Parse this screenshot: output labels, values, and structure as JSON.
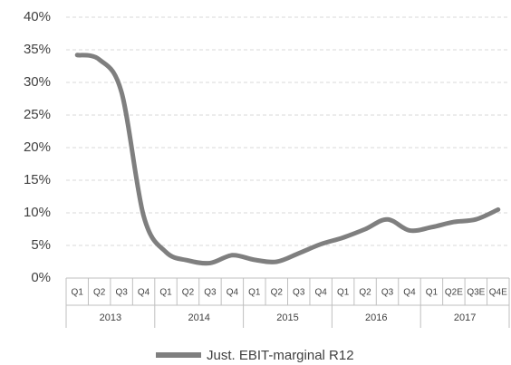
{
  "chart_data": {
    "type": "line",
    "categories": [
      "Q1",
      "Q2",
      "Q3",
      "Q4",
      "Q1",
      "Q2",
      "Q3",
      "Q4",
      "Q1",
      "Q2",
      "Q3",
      "Q4",
      "Q1",
      "Q2",
      "Q3",
      "Q4",
      "Q1",
      "Q2E",
      "Q3E",
      "Q4E"
    ],
    "groups": [
      "2013",
      "2014",
      "2015",
      "2016",
      "2017"
    ],
    "series": [
      {
        "name": "Just. EBIT-marginal R12",
        "color": "#7f7f7f",
        "values": [
          34.2,
          33.5,
          28.5,
          9.5,
          4.0,
          2.7,
          2.3,
          3.5,
          2.8,
          2.5,
          3.8,
          5.2,
          6.2,
          7.5,
          9.0,
          7.3,
          7.8,
          8.6,
          9.0,
          10.5
        ]
      }
    ],
    "ylim": [
      0,
      40
    ],
    "yticks": [
      {
        "value": 0,
        "label": "0%"
      },
      {
        "value": 5,
        "label": "5%"
      },
      {
        "value": 10,
        "label": "10%"
      },
      {
        "value": 15,
        "label": "15%"
      },
      {
        "value": 20,
        "label": "20%"
      },
      {
        "value": 25,
        "label": "25%"
      },
      {
        "value": 30,
        "label": "30%"
      },
      {
        "value": 35,
        "label": "35%"
      },
      {
        "value": 40,
        "label": "40%"
      }
    ],
    "grid": true,
    "legend": "bottom"
  }
}
